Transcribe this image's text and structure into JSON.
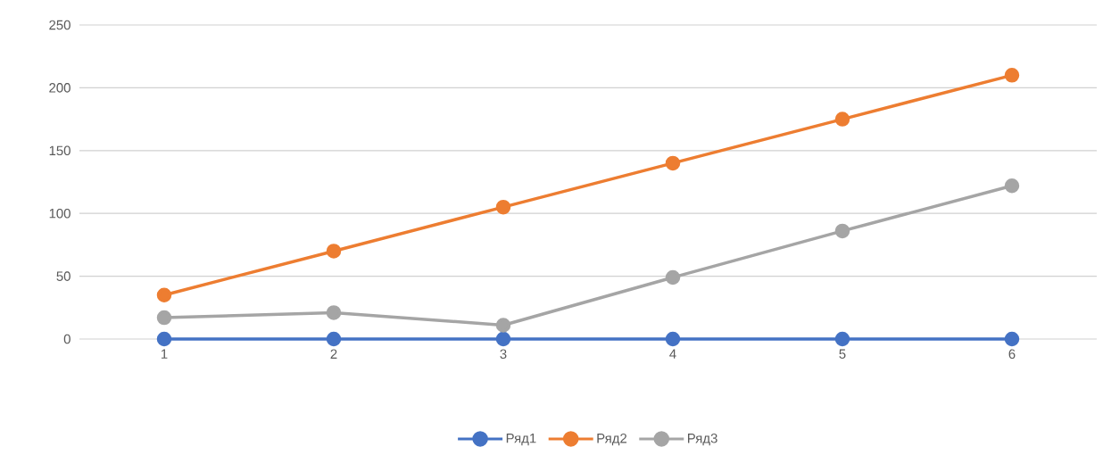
{
  "chart_data": {
    "type": "line",
    "categories": [
      "1",
      "2",
      "3",
      "4",
      "5",
      "6"
    ],
    "series": [
      {
        "name": "Ряд1",
        "color": "#4472c4",
        "values": [
          0,
          0,
          0,
          0,
          0,
          0
        ]
      },
      {
        "name": "Ряд2",
        "color": "#ed7d31",
        "values": [
          35,
          70,
          105,
          140,
          175,
          210
        ]
      },
      {
        "name": "Ряд3",
        "color": "#a5a5a5",
        "values": [
          17,
          21,
          11,
          49,
          86,
          122
        ]
      }
    ],
    "ylim": [
      0,
      250
    ],
    "yticks": [
      0,
      50,
      100,
      150,
      200,
      250
    ],
    "grid": "y",
    "legend": "bottom",
    "marker": "circle",
    "line_style": "solid"
  }
}
